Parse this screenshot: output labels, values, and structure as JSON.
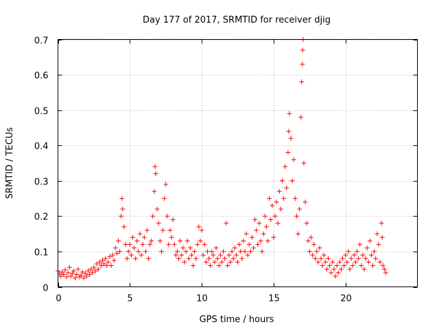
{
  "chart_data": {
    "type": "scatter",
    "title": "Day 177 of 2017, SRMTID for receiver djig",
    "xlabel": "GPS time / hours",
    "ylabel": "SRMTID / TECUs",
    "xlim": [
      0,
      25
    ],
    "ylim": [
      0,
      0.7
    ],
    "xticks": [
      0,
      5,
      10,
      15,
      20
    ],
    "yticks": [
      0,
      0.1,
      0.2,
      0.3,
      0.4,
      0.5,
      0.6,
      0.7
    ],
    "grid": true,
    "marker": "+",
    "color": "#ff0000",
    "series": [
      {
        "name": "SRMTID",
        "points": [
          [
            0.0,
            0.045
          ],
          [
            0.1,
            0.038
          ],
          [
            0.2,
            0.03
          ],
          [
            0.3,
            0.042
          ],
          [
            0.4,
            0.035
          ],
          [
            0.5,
            0.048
          ],
          [
            0.6,
            0.028
          ],
          [
            0.7,
            0.04
          ],
          [
            0.8,
            0.055
          ],
          [
            0.9,
            0.03
          ],
          [
            1.0,
            0.038
          ],
          [
            1.1,
            0.045
          ],
          [
            1.2,
            0.025
          ],
          [
            1.3,
            0.035
          ],
          [
            1.4,
            0.05
          ],
          [
            1.5,
            0.028
          ],
          [
            1.6,
            0.032
          ],
          [
            1.7,
            0.042
          ],
          [
            1.8,
            0.025
          ],
          [
            1.9,
            0.038
          ],
          [
            2.0,
            0.03
          ],
          [
            2.1,
            0.045
          ],
          [
            2.2,
            0.035
          ],
          [
            2.3,
            0.05
          ],
          [
            2.4,
            0.04
          ],
          [
            2.5,
            0.055
          ],
          [
            2.6,
            0.045
          ],
          [
            2.7,
            0.065
          ],
          [
            2.8,
            0.05
          ],
          [
            2.9,
            0.07
          ],
          [
            3.0,
            0.06
          ],
          [
            3.1,
            0.075
          ],
          [
            3.2,
            0.065
          ],
          [
            3.3,
            0.08
          ],
          [
            3.4,
            0.06
          ],
          [
            3.5,
            0.07
          ],
          [
            3.6,
            0.085
          ],
          [
            3.7,
            0.06
          ],
          [
            3.8,
            0.09
          ],
          [
            3.9,
            0.075
          ],
          [
            4.0,
            0.11
          ],
          [
            4.1,
            0.095
          ],
          [
            4.2,
            0.13
          ],
          [
            4.3,
            0.1
          ],
          [
            4.4,
            0.2
          ],
          [
            4.45,
            0.25
          ],
          [
            4.5,
            0.22
          ],
          [
            4.6,
            0.17
          ],
          [
            4.7,
            0.12
          ],
          [
            4.8,
            0.08
          ],
          [
            4.9,
            0.1
          ],
          [
            5.0,
            0.12
          ],
          [
            5.1,
            0.09
          ],
          [
            5.2,
            0.14
          ],
          [
            5.3,
            0.11
          ],
          [
            5.4,
            0.08
          ],
          [
            5.5,
            0.13
          ],
          [
            5.6,
            0.1
          ],
          [
            5.7,
            0.15
          ],
          [
            5.8,
            0.09
          ],
          [
            5.9,
            0.12
          ],
          [
            6.0,
            0.14
          ],
          [
            6.1,
            0.1
          ],
          [
            6.2,
            0.16
          ],
          [
            6.3,
            0.08
          ],
          [
            6.4,
            0.12
          ],
          [
            6.5,
            0.13
          ],
          [
            6.6,
            0.2
          ],
          [
            6.7,
            0.27
          ],
          [
            6.75,
            0.34
          ],
          [
            6.8,
            0.32
          ],
          [
            6.9,
            0.22
          ],
          [
            7.0,
            0.18
          ],
          [
            7.1,
            0.13
          ],
          [
            7.2,
            0.1
          ],
          [
            7.3,
            0.16
          ],
          [
            7.4,
            0.25
          ],
          [
            7.5,
            0.29
          ],
          [
            7.6,
            0.2
          ],
          [
            7.7,
            0.12
          ],
          [
            7.8,
            0.16
          ],
          [
            7.9,
            0.14
          ],
          [
            8.0,
            0.19
          ],
          [
            8.1,
            0.12
          ],
          [
            8.2,
            0.09
          ],
          [
            8.3,
            0.1
          ],
          [
            8.4,
            0.08
          ],
          [
            8.5,
            0.13
          ],
          [
            8.6,
            0.09
          ],
          [
            8.7,
            0.11
          ],
          [
            8.8,
            0.07
          ],
          [
            8.9,
            0.1
          ],
          [
            9.0,
            0.13
          ],
          [
            9.1,
            0.08
          ],
          [
            9.2,
            0.11
          ],
          [
            9.3,
            0.09
          ],
          [
            9.4,
            0.06
          ],
          [
            9.5,
            0.1
          ],
          [
            9.6,
            0.08
          ],
          [
            9.7,
            0.12
          ],
          [
            9.8,
            0.17
          ],
          [
            9.9,
            0.13
          ],
          [
            10.0,
            0.16
          ],
          [
            10.1,
            0.09
          ],
          [
            10.2,
            0.12
          ],
          [
            10.3,
            0.07
          ],
          [
            10.4,
            0.1
          ],
          [
            10.5,
            0.08
          ],
          [
            10.6,
            0.06
          ],
          [
            10.7,
            0.1
          ],
          [
            10.8,
            0.09
          ],
          [
            10.9,
            0.07
          ],
          [
            11.0,
            0.11
          ],
          [
            11.1,
            0.08
          ],
          [
            11.2,
            0.06
          ],
          [
            11.3,
            0.09
          ],
          [
            11.4,
            0.07
          ],
          [
            11.5,
            0.1
          ],
          [
            11.6,
            0.08
          ],
          [
            11.7,
            0.18
          ],
          [
            11.8,
            0.06
          ],
          [
            11.9,
            0.09
          ],
          [
            12.0,
            0.07
          ],
          [
            12.1,
            0.1
          ],
          [
            12.2,
            0.08
          ],
          [
            12.3,
            0.11
          ],
          [
            12.4,
            0.09
          ],
          [
            12.5,
            0.07
          ],
          [
            12.6,
            0.12
          ],
          [
            12.7,
            0.1
          ],
          [
            12.8,
            0.08
          ],
          [
            12.9,
            0.13
          ],
          [
            13.0,
            0.1
          ],
          [
            13.1,
            0.15
          ],
          [
            13.2,
            0.09
          ],
          [
            13.3,
            0.12
          ],
          [
            13.4,
            0.1
          ],
          [
            13.5,
            0.14
          ],
          [
            13.6,
            0.11
          ],
          [
            13.7,
            0.19
          ],
          [
            13.8,
            0.16
          ],
          [
            13.9,
            0.12
          ],
          [
            14.0,
            0.18
          ],
          [
            14.1,
            0.13
          ],
          [
            14.2,
            0.1
          ],
          [
            14.3,
            0.15
          ],
          [
            14.4,
            0.2
          ],
          [
            14.5,
            0.17
          ],
          [
            14.6,
            0.13
          ],
          [
            14.7,
            0.25
          ],
          [
            14.8,
            0.19
          ],
          [
            14.9,
            0.23
          ],
          [
            15.0,
            0.14
          ],
          [
            15.1,
            0.2
          ],
          [
            15.2,
            0.24
          ],
          [
            15.3,
            0.18
          ],
          [
            15.4,
            0.27
          ],
          [
            15.5,
            0.22
          ],
          [
            15.6,
            0.3
          ],
          [
            15.7,
            0.25
          ],
          [
            15.8,
            0.34
          ],
          [
            15.9,
            0.28
          ],
          [
            16.0,
            0.38
          ],
          [
            16.05,
            0.44
          ],
          [
            16.1,
            0.49
          ],
          [
            16.2,
            0.42
          ],
          [
            16.3,
            0.3
          ],
          [
            16.4,
            0.36
          ],
          [
            16.5,
            0.25
          ],
          [
            16.6,
            0.2
          ],
          [
            16.7,
            0.15
          ],
          [
            16.8,
            0.22
          ],
          [
            16.9,
            0.48
          ],
          [
            16.95,
            0.58
          ],
          [
            17.0,
            0.63
          ],
          [
            17.02,
            0.67
          ],
          [
            17.05,
            0.7
          ],
          [
            17.1,
            0.35
          ],
          [
            17.2,
            0.24
          ],
          [
            17.3,
            0.18
          ],
          [
            17.4,
            0.13
          ],
          [
            17.5,
            0.1
          ],
          [
            17.6,
            0.14
          ],
          [
            17.7,
            0.09
          ],
          [
            17.8,
            0.12
          ],
          [
            17.9,
            0.08
          ],
          [
            18.0,
            0.1
          ],
          [
            18.1,
            0.07
          ],
          [
            18.2,
            0.11
          ],
          [
            18.3,
            0.08
          ],
          [
            18.4,
            0.06
          ],
          [
            18.5,
            0.09
          ],
          [
            18.6,
            0.07
          ],
          [
            18.7,
            0.05
          ],
          [
            18.8,
            0.08
          ],
          [
            18.9,
            0.06
          ],
          [
            19.0,
            0.04
          ],
          [
            19.1,
            0.07
          ],
          [
            19.2,
            0.05
          ],
          [
            19.3,
            0.03
          ],
          [
            19.4,
            0.06
          ],
          [
            19.5,
            0.04
          ],
          [
            19.6,
            0.07
          ],
          [
            19.7,
            0.05
          ],
          [
            19.8,
            0.08
          ],
          [
            19.9,
            0.06
          ],
          [
            20.0,
            0.09
          ],
          [
            20.1,
            0.07
          ],
          [
            20.2,
            0.1
          ],
          [
            20.3,
            0.05
          ],
          [
            20.4,
            0.08
          ],
          [
            20.5,
            0.06
          ],
          [
            20.6,
            0.09
          ],
          [
            20.7,
            0.07
          ],
          [
            20.8,
            0.1
          ],
          [
            20.9,
            0.08
          ],
          [
            21.0,
            0.12
          ],
          [
            21.1,
            0.06
          ],
          [
            21.2,
            0.09
          ],
          [
            21.3,
            0.05
          ],
          [
            21.4,
            0.08
          ],
          [
            21.5,
            0.11
          ],
          [
            21.6,
            0.07
          ],
          [
            21.7,
            0.13
          ],
          [
            21.8,
            0.09
          ],
          [
            21.9,
            0.06
          ],
          [
            22.0,
            0.1
          ],
          [
            22.1,
            0.08
          ],
          [
            22.2,
            0.15
          ],
          [
            22.3,
            0.12
          ],
          [
            22.4,
            0.07
          ],
          [
            22.5,
            0.18
          ],
          [
            22.55,
            0.14
          ],
          [
            22.6,
            0.06
          ],
          [
            22.7,
            0.05
          ],
          [
            22.8,
            0.04
          ]
        ]
      }
    ]
  }
}
